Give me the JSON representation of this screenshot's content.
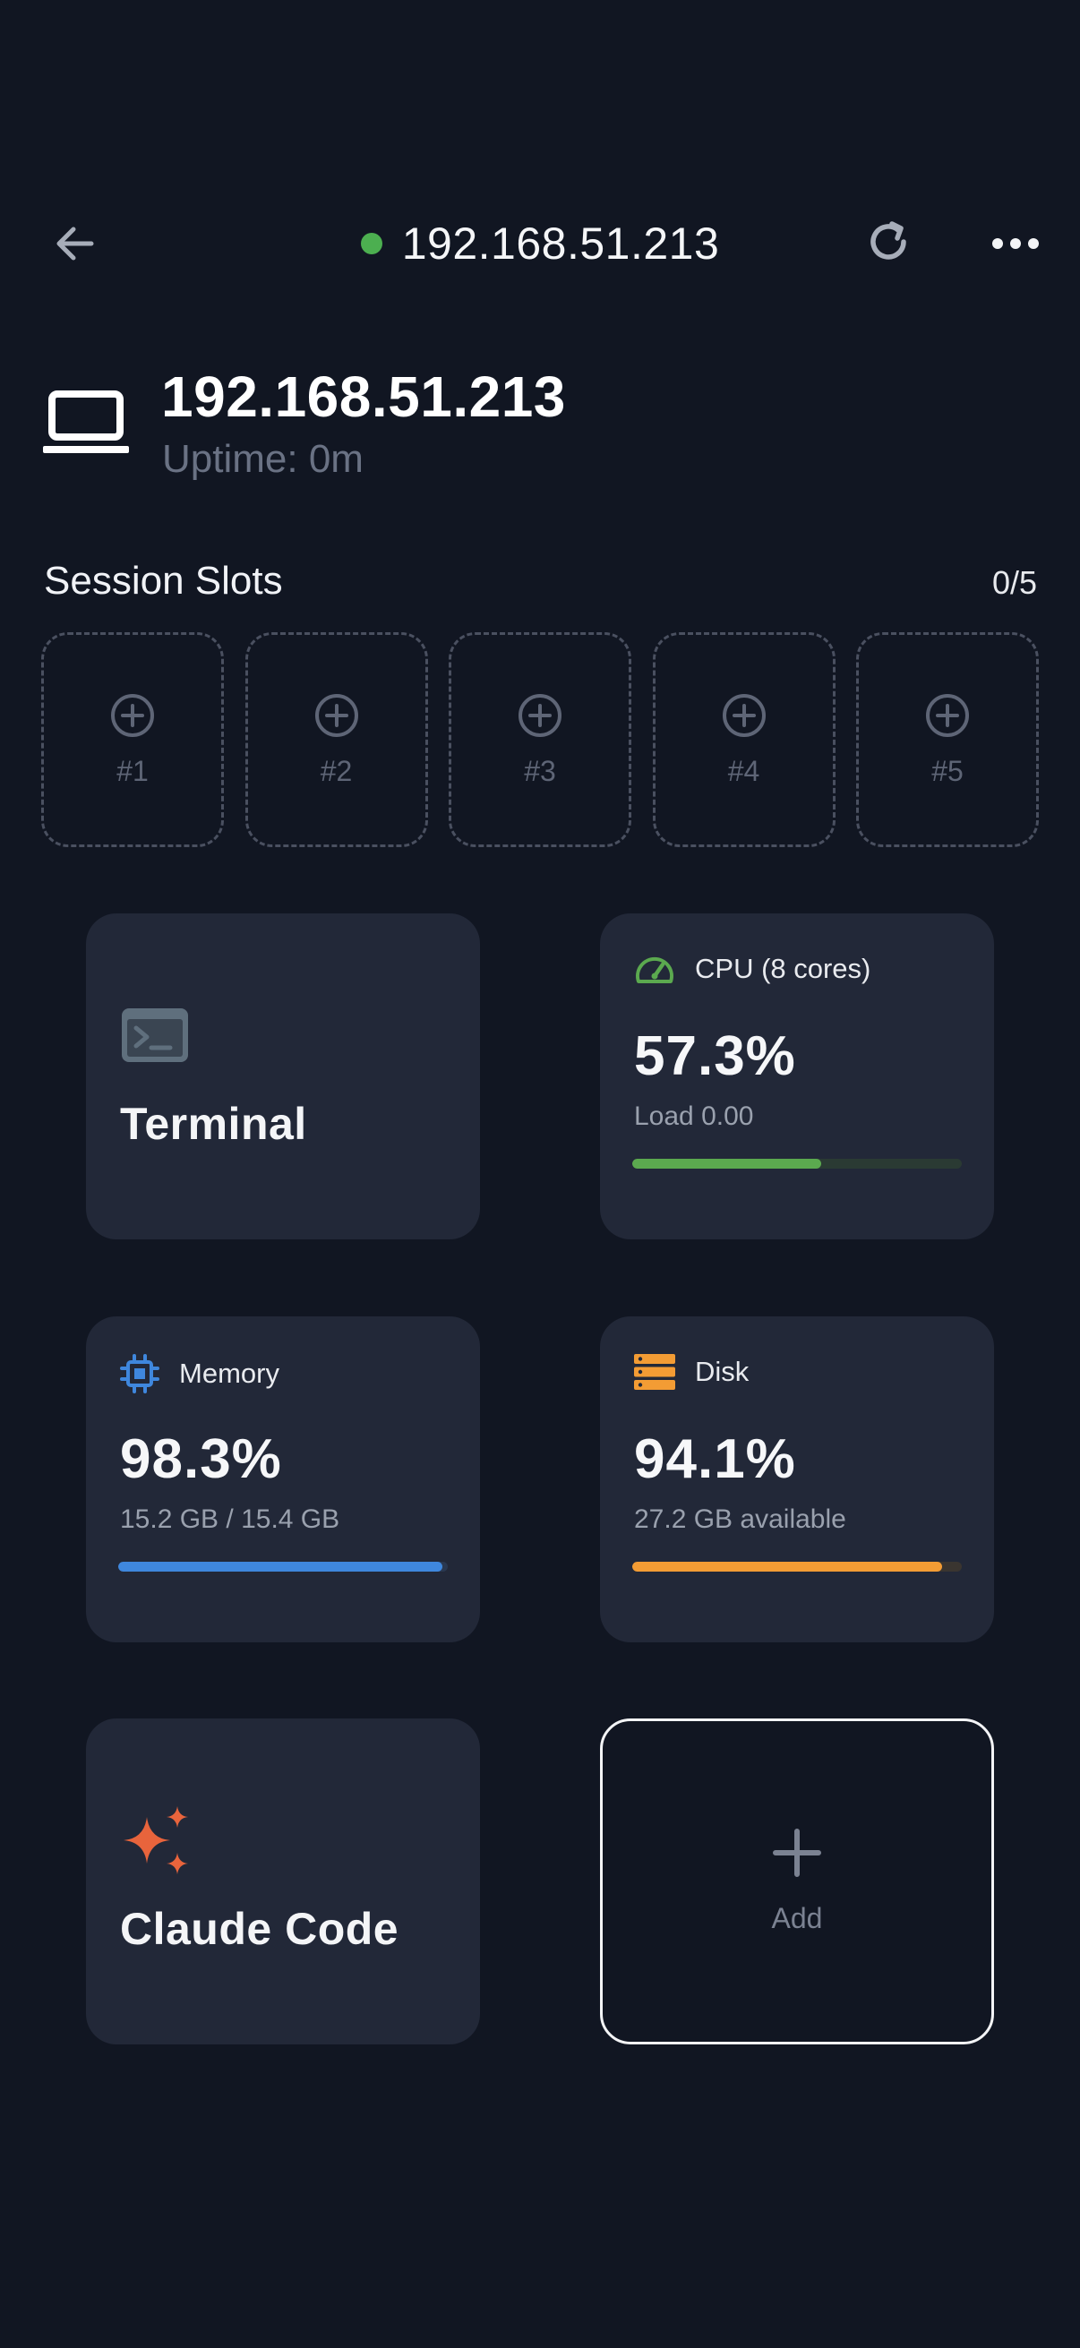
{
  "header": {
    "title": "192.168.51.213",
    "status_color": "#4caf50",
    "back_icon": "arrow-left-icon",
    "refresh_icon": "refresh-icon",
    "more_icon": "more-horizontal-icon"
  },
  "host": {
    "name": "192.168.51.213",
    "uptime": "Uptime: 0m",
    "icon": "laptop-icon"
  },
  "session_slots": {
    "title": "Session Slots",
    "count": "0/5",
    "slots": [
      {
        "label": "#1"
      },
      {
        "label": "#2"
      },
      {
        "label": "#3"
      },
      {
        "label": "#4"
      },
      {
        "label": "#5"
      }
    ]
  },
  "cards": {
    "terminal": {
      "label": "Terminal",
      "icon": "terminal-icon"
    },
    "cpu": {
      "title": "CPU (8 cores)",
      "value": "57.3%",
      "sub": "Load 0.00",
      "progress": 0.573,
      "color": "#5ba94f",
      "track_color": "#2a3a33",
      "icon": "speedometer-icon"
    },
    "memory": {
      "title": "Memory",
      "value": "98.3%",
      "sub": "15.2 GB / 15.4 GB",
      "progress": 0.983,
      "color": "#3f87dd",
      "track_color": "#2a3850",
      "icon": "chip-icon"
    },
    "disk": {
      "title": "Disk",
      "value": "94.1%",
      "sub": "27.2 GB available",
      "progress": 0.941,
      "color": "#f39c34",
      "track_color": "#3a3530",
      "icon": "server-icon"
    },
    "claude": {
      "label": "Claude Code",
      "icon": "sparkle-icon",
      "color": "#e8643c"
    },
    "add": {
      "label": "Add",
      "icon": "plus-icon"
    }
  }
}
